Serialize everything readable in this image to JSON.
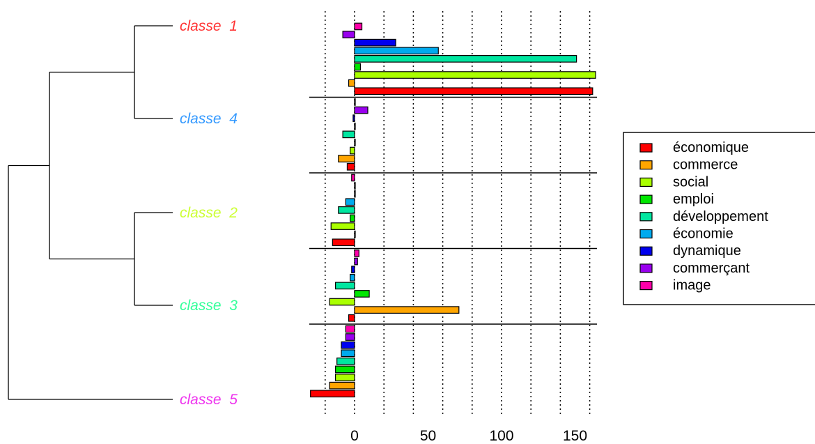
{
  "chart_data": {
    "type": "bar",
    "orientation": "horizontal",
    "grouped_by": "classes",
    "xlim": [
      -20,
      160
    ],
    "xticks": [
      0,
      50,
      100,
      150
    ],
    "grid_lines_at": [
      -20,
      0,
      20,
      40,
      60,
      80,
      100,
      120,
      140,
      160
    ],
    "legend_position": "right",
    "series_names": [
      "économique",
      "commerce",
      "social",
      "emploi",
      "développement",
      "économie",
      "dynamique",
      "commerçant",
      "image"
    ],
    "series_colors": [
      "#ff0000",
      "#ffa500",
      "#aaff00",
      "#00e600",
      "#00e6a0",
      "#00aaee",
      "#0000ee",
      "#9900ee",
      "#ff00aa"
    ],
    "classes": [
      {
        "label": "classe  1",
        "color": "#ff3333",
        "values": [
          162,
          -4,
          164,
          4,
          151,
          57,
          28,
          -8,
          5
        ]
      },
      {
        "label": "classe  4",
        "color": "#3399ff",
        "values": [
          -5,
          -11,
          -3,
          0,
          -8,
          0,
          -1,
          9,
          0
        ]
      },
      {
        "label": "classe  2",
        "color": "#ccff33",
        "values": [
          -15,
          0,
          -16,
          -3,
          -11,
          -6,
          0,
          0,
          -2
        ]
      },
      {
        "label": "classe  3",
        "color": "#33ff99",
        "values": [
          -4,
          71,
          -17,
          10,
          -13,
          -3,
          -2,
          2,
          3
        ]
      },
      {
        "label": "classe  5",
        "color": "#ee33ee",
        "values": [
          -30,
          -17,
          -13,
          -13,
          -12,
          -9,
          -9,
          -6,
          -6
        ]
      }
    ]
  }
}
